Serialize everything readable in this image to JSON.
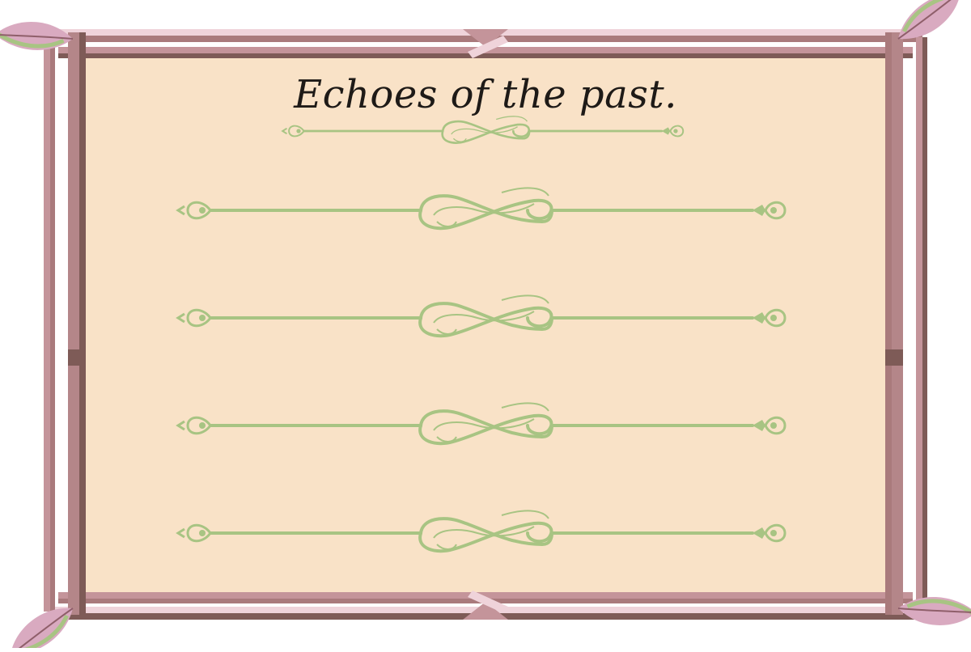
{
  "title": "Echoes of the past.",
  "colors": {
    "page_fill": "#f9e2c7",
    "frame_light": "#c4949a",
    "frame_mid": "#a97a7c",
    "frame_dark": "#7e5b57",
    "frame_highlight": "#efd3da",
    "ornament": "#a8c483",
    "leaf_pink": "#d9aac0",
    "leaf_green": "#a8c483"
  },
  "sections": [
    {
      "name": "title-divider"
    },
    {
      "name": "writing-line-1"
    },
    {
      "name": "writing-line-2"
    },
    {
      "name": "writing-line-3"
    },
    {
      "name": "writing-line-4"
    }
  ]
}
